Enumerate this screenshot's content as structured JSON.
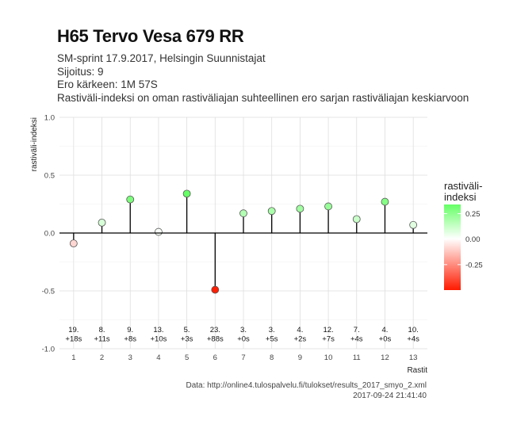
{
  "title": "H65 Tervo Vesa 679 RR",
  "subtitle": [
    "SM-sprint 17.9.2017, Helsingin Suunnistajat",
    "Sijoitus: 9",
    "Ero kärkeen: 1M 57S",
    "Rastiväli-indeksi on oman rastiväliajan suhteellinen ero sarjan rastiväliajan keskiarvoon"
  ],
  "caption": [
    "Data: http://online4.tulospalvelu.fi/tulokset/results_2017_smyo_2.xml",
    "2017-09-24 21:41:40"
  ],
  "chart_data": {
    "type": "lollipop",
    "xlabel": "Rastit",
    "ylabel": "rastiväli-indeksi",
    "xlim": [
      0.5,
      13.5
    ],
    "ylim": [
      -1.0,
      1.0
    ],
    "yticks": [
      -1.0,
      -0.5,
      0.0,
      0.5,
      1.0
    ],
    "ytick_labels": [
      "-1.0",
      "-0.5",
      "0.0",
      "0.5",
      "1.0"
    ],
    "x": [
      1,
      2,
      3,
      4,
      5,
      6,
      7,
      8,
      9,
      10,
      11,
      12,
      13
    ],
    "values": [
      -0.09,
      0.09,
      0.29,
      0.01,
      0.34,
      -0.49,
      0.17,
      0.19,
      0.21,
      0.23,
      0.12,
      0.27,
      0.07
    ],
    "annotations": [
      [
        "19.",
        "+18s"
      ],
      [
        "8.",
        "+11s"
      ],
      [
        "9.",
        "+8s"
      ],
      [
        "13.",
        "+10s"
      ],
      [
        "5.",
        "+3s"
      ],
      [
        "23.",
        "+88s"
      ],
      [
        "3.",
        "+0s"
      ],
      [
        "3.",
        "+5s"
      ],
      [
        "4.",
        "+2s"
      ],
      [
        "12.",
        "+7s"
      ],
      [
        "7.",
        "+4s"
      ],
      [
        "4.",
        "+0s"
      ],
      [
        "10.",
        "+4s"
      ]
    ],
    "annotation_y": -0.91,
    "grid": true,
    "legend": {
      "title": [
        "rastiväli-",
        "indeksi"
      ],
      "position": "right",
      "ticks": [
        0.25,
        0.0,
        -0.25
      ],
      "tick_labels": [
        "0.25",
        "0.00",
        "-0.25"
      ],
      "range": [
        -0.5,
        0.34
      ]
    },
    "colors": {
      "high": "#66ff66",
      "mid": "#ffffff",
      "low": "#ff1a00",
      "grid_major": "#dedede",
      "grid_minor": "#efefef",
      "axis": "#000000"
    }
  }
}
